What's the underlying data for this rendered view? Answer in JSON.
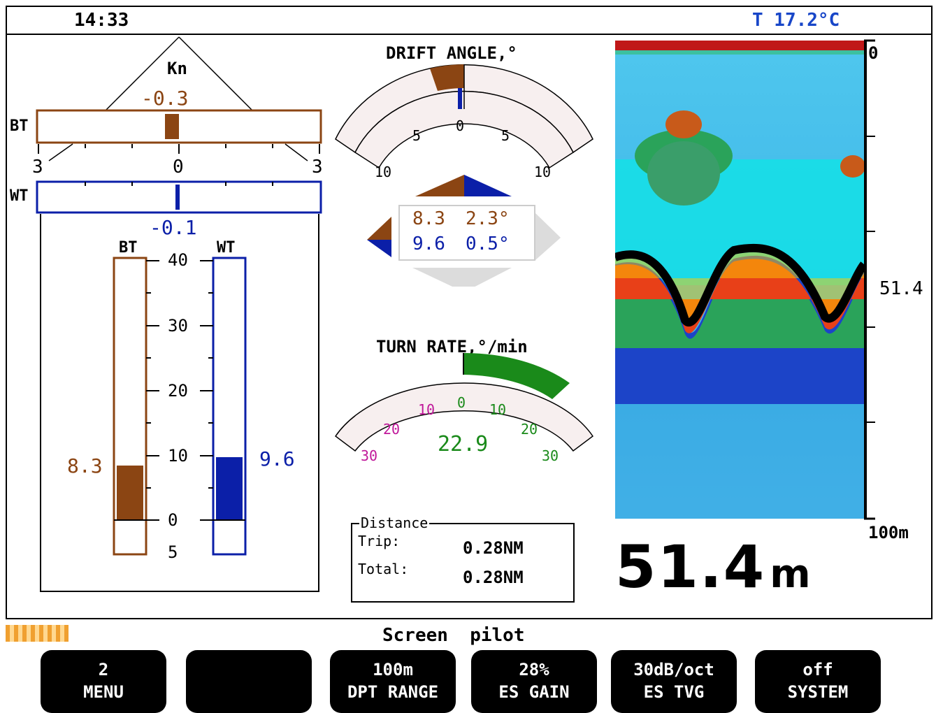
{
  "header": {
    "time": "14:33",
    "temperature": "T 17.2°C"
  },
  "speed_panel": {
    "unit": "Kn",
    "bt": {
      "label": "BT",
      "value_text": "-0.3",
      "value": -0.3,
      "scale_left": "3",
      "scale_mid": "0",
      "scale_right": "3"
    },
    "wt": {
      "label": "WT",
      "value_text": "-0.1",
      "value": -0.1
    },
    "vertical": {
      "bt_label": "BT",
      "wt_label": "WT",
      "bt_value_text": "8.3",
      "bt_value": 8.3,
      "wt_value_text": "9.6",
      "wt_value": 9.6,
      "ticks": [
        "40",
        "30",
        "20",
        "10",
        "0",
        "5"
      ]
    }
  },
  "drift": {
    "title": "DRIFT ANGLE,°",
    "ticks": [
      "10",
      "5",
      "0",
      "5",
      "10"
    ],
    "bt_row": {
      "speed": "8.3",
      "angle": "2.3°"
    },
    "wt_row": {
      "speed": "9.6",
      "angle": "0.5°"
    }
  },
  "turn": {
    "title": "TURN RATE,°/min",
    "ticks_left": [
      "30",
      "20",
      "10"
    ],
    "tick_zero": "0",
    "ticks_right": [
      "10",
      "20",
      "30"
    ],
    "value_text": "22.9",
    "value": 22.9
  },
  "distance": {
    "legend": "Distance",
    "trip_label": "Trip:",
    "trip_value": "0.28NM",
    "total_label": "Total:",
    "total_value": "0.28NM"
  },
  "echo": {
    "depth_top": "0",
    "depth_bottom": "100m",
    "marker": "51.4",
    "big_depth": "51.4",
    "big_unit": "m"
  },
  "footer": {
    "screen_label": "Screen  pilot",
    "softkeys": [
      {
        "top": "2",
        "bottom": "MENU"
      },
      {
        "top": "",
        "bottom": ""
      },
      {
        "top": "100m",
        "bottom": "DPT RANGE"
      },
      {
        "top": "28%",
        "bottom": "ES GAIN"
      },
      {
        "top": "30dB/oct",
        "bottom": "ES TVG"
      },
      {
        "top": "off",
        "bottom": "SYSTEM"
      }
    ]
  },
  "colors": {
    "bt": "#8b4513",
    "wt": "#0b1fa8",
    "turn": "#1a8a1a",
    "magenta": "#c0189a",
    "temp": "#1846c8"
  }
}
